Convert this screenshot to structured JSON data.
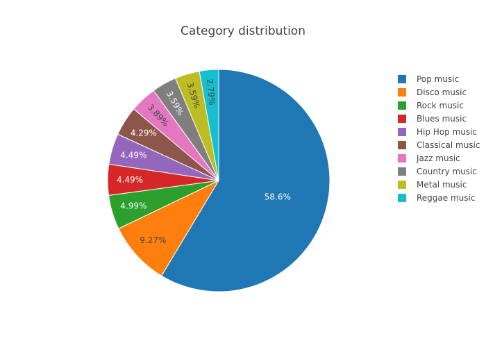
{
  "chart_data": {
    "type": "pie",
    "title": "Category distribution",
    "legend_position": "right",
    "slices": [
      {
        "label": "Pop music",
        "value": 58.6,
        "text": "58.6%",
        "color": "#1f77b4",
        "text_color": "#ffffff"
      },
      {
        "label": "Disco music",
        "value": 9.27,
        "text": "9.27%",
        "color": "#ff7f0e",
        "text_color": "#444444"
      },
      {
        "label": "Rock music",
        "value": 4.99,
        "text": "4.99%",
        "color": "#2ca02c",
        "text_color": "#ffffff"
      },
      {
        "label": "Blues music",
        "value": 4.49,
        "text": "4.49%",
        "color": "#d62728",
        "text_color": "#ffffff"
      },
      {
        "label": "Hip Hop music",
        "value": 4.49,
        "text": "4.49%",
        "color": "#9467bd",
        "text_color": "#ffffff"
      },
      {
        "label": "Classical music",
        "value": 4.29,
        "text": "4.29%",
        "color": "#8c564b",
        "text_color": "#ffffff"
      },
      {
        "label": "Jazz music",
        "value": 3.89,
        "text": "3.89%",
        "color": "#e377c2",
        "text_color": "#444444"
      },
      {
        "label": "Country music",
        "value": 3.59,
        "text": "3.59%",
        "color": "#7f7f7f",
        "text_color": "#ffffff"
      },
      {
        "label": "Metal music",
        "value": 3.59,
        "text": "3.59%",
        "color": "#bcbd22",
        "text_color": "#444444"
      },
      {
        "label": "Reggae music",
        "value": 2.79,
        "text": "2.79%",
        "color": "#17becf",
        "text_color": "#444444"
      }
    ]
  }
}
